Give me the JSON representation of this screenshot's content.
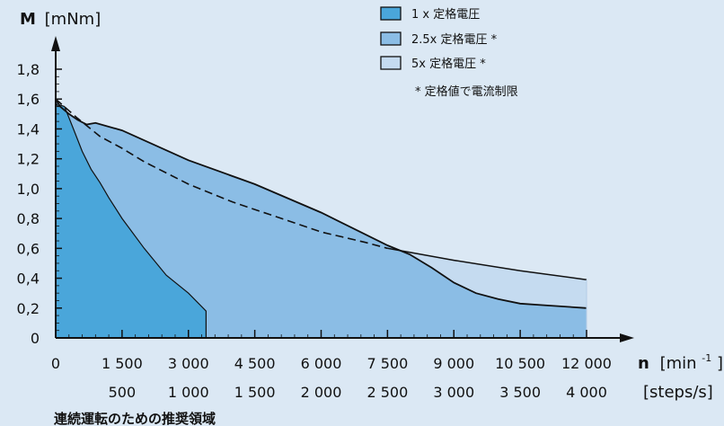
{
  "chart_data": {
    "type": "area",
    "y_axis": {
      "title_bold": "M",
      "title_unit": "[mNm]",
      "range": [
        0,
        1.8
      ],
      "ticks": [
        0,
        0.2,
        0.4,
        0.6,
        0.8,
        1.0,
        1.2,
        1.4,
        1.6,
        1.8
      ],
      "tick_labels": [
        "0",
        "0,2",
        "0,4",
        "0,6",
        "0,8",
        "1,0",
        "1,2",
        "1,4",
        "1,6",
        "1,8"
      ]
    },
    "x_axis": {
      "title_bold": "n",
      "title_unit_prefix": "[min",
      "title_unit_sup": "-1",
      "title_unit_suffix": "]",
      "range": [
        0,
        12000
      ],
      "ticks": [
        0,
        1500,
        3000,
        4500,
        6000,
        7500,
        9000,
        10500,
        12000
      ],
      "tick_labels": [
        "0",
        "1 500",
        "3 000",
        "4 500",
        "6 000",
        "7 500",
        "9 000",
        "10 500",
        "12 000"
      ],
      "secondary_title": "[steps/s]",
      "secondary_tick_labels": [
        "500",
        "1 000",
        "1 500",
        "2 000",
        "2 500",
        "3 000",
        "3 500",
        "4 000"
      ],
      "secondary_tick_at": [
        1500,
        3000,
        4500,
        6000,
        7500,
        9000,
        10500,
        12000
      ]
    },
    "series": [
      {
        "name": "1 x 定格電圧",
        "color": "#4aa6da",
        "x": [
          0,
          50,
          100,
          200,
          400,
          600,
          800,
          1000,
          1200,
          1500,
          2000,
          2500,
          3000,
          3400,
          3400
        ],
        "y": [
          1.58,
          1.55,
          1.56,
          1.55,
          1.4,
          1.25,
          1.13,
          1.04,
          0.94,
          0.8,
          0.6,
          0.42,
          0.3,
          0.18,
          0
        ]
      },
      {
        "name": "2.5x 定格電圧 *",
        "color": "#8bbde5",
        "x": [
          0,
          100,
          300,
          500,
          700,
          900,
          1500,
          3000,
          4500,
          6000,
          7500,
          8000,
          8500,
          9000,
          9500,
          10000,
          10500,
          11000,
          12000
        ],
        "y": [
          1.6,
          1.55,
          1.5,
          1.46,
          1.43,
          1.44,
          1.39,
          1.19,
          1.03,
          0.84,
          0.62,
          0.56,
          0.47,
          0.37,
          0.3,
          0.26,
          0.23,
          0.22,
          0.2
        ]
      },
      {
        "name": "5x 定格電圧 *",
        "color": "#c5dbf0",
        "x": [
          7500,
          9000,
          10500,
          12000
        ],
        "y": [
          0.6,
          0.52,
          0.45,
          0.39
        ]
      },
      {
        "name": "連続運転のための推奨領域",
        "style": "dashed",
        "x": [
          0,
          500,
          1000,
          1500,
          2000,
          3000,
          4000,
          5000,
          6000,
          7000,
          7500
        ],
        "y": [
          1.6,
          1.47,
          1.35,
          1.27,
          1.18,
          1.03,
          0.91,
          0.81,
          0.71,
          0.64,
          0.6
        ]
      }
    ],
    "legend": {
      "placement": "top-right",
      "items": [
        {
          "label": "1 x 定格電圧",
          "color": "#4aa6da"
        },
        {
          "label": "2.5x 定格電圧 *",
          "color": "#8bbde5"
        },
        {
          "label": "5x 定格電圧 *",
          "color": "#c5dbf0"
        }
      ],
      "note": "* 定格値で電流制限"
    },
    "caption": "連続運転のための推奨領域",
    "grid": false
  }
}
